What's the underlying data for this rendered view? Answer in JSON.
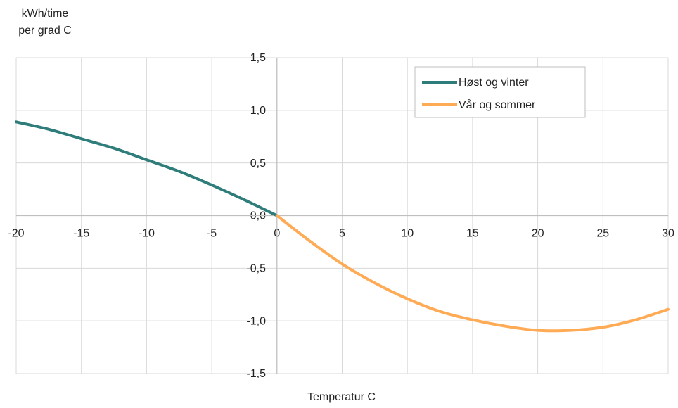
{
  "chart_data": {
    "type": "line",
    "ylabel_lines": [
      "kWh/time",
      "per grad C"
    ],
    "xlabel": "Temperatur C",
    "xlim": [
      -20,
      30
    ],
    "ylim": [
      -1.5,
      1.5
    ],
    "grid": true,
    "legend_position": "top-right",
    "x_ticks": [
      "-20",
      "-15",
      "-10",
      "-5",
      "0",
      "5",
      "10",
      "15",
      "20",
      "25",
      "30"
    ],
    "y_ticks": [
      "1,5",
      "1,0",
      "0,5",
      "0,0",
      "-0,5",
      "-1,0",
      "-1,5"
    ],
    "series": [
      {
        "name": "Høst og vinter",
        "color": "#2e7d7b",
        "x": [
          -20,
          -17.5,
          -15,
          -12.5,
          -10,
          -7.5,
          -5,
          -2.5,
          0
        ],
        "y": [
          0.89,
          0.82,
          0.73,
          0.64,
          0.53,
          0.42,
          0.29,
          0.15,
          0.0
        ]
      },
      {
        "name": "Vår og sommer",
        "color": "#ffaa55",
        "x": [
          0,
          2.5,
          5,
          7.5,
          10,
          12.5,
          15,
          17.5,
          20,
          22.5,
          25,
          27.5,
          30
        ],
        "y": [
          0.0,
          -0.24,
          -0.46,
          -0.64,
          -0.79,
          -0.91,
          -0.99,
          -1.05,
          -1.09,
          -1.09,
          -1.06,
          -0.99,
          -0.89
        ]
      }
    ]
  }
}
